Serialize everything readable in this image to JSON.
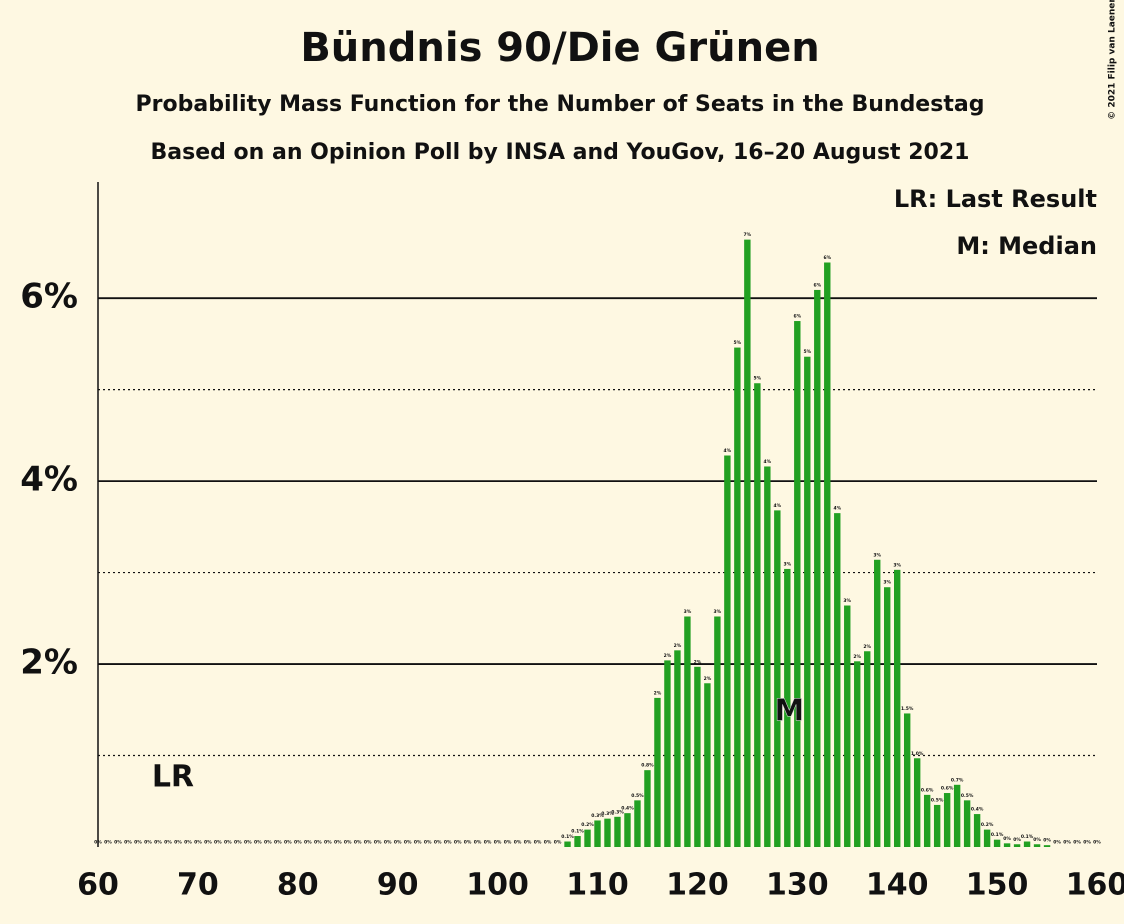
{
  "chart_data": {
    "type": "bar",
    "title": "Bündnis 90/Die Grünen",
    "subtitle": "Probability Mass Function for the Number of Seats in the Bundestag",
    "subtitle2": "Based on an Opinion Poll by INSA and YouGov, 16–20 August 2021",
    "copyright": "© 2021 Filip van Laenen",
    "legend": [
      "LR: Last Result",
      "M: Median"
    ],
    "last_result": {
      "label": "LR",
      "seat": 67
    },
    "median": {
      "label": "M",
      "seat": 129
    },
    "color": "#22a022",
    "x": [
      60,
      61,
      62,
      63,
      64,
      65,
      66,
      67,
      68,
      69,
      70,
      71,
      72,
      73,
      74,
      75,
      76,
      77,
      78,
      79,
      80,
      81,
      82,
      83,
      84,
      85,
      86,
      87,
      88,
      89,
      90,
      91,
      92,
      93,
      94,
      95,
      96,
      97,
      98,
      99,
      100,
      101,
      102,
      103,
      104,
      105,
      106,
      107,
      108,
      109,
      110,
      111,
      112,
      113,
      114,
      115,
      116,
      117,
      118,
      119,
      120,
      121,
      122,
      123,
      124,
      125,
      126,
      127,
      128,
      129,
      130,
      131,
      132,
      133,
      134,
      135,
      136,
      137,
      138,
      139,
      140,
      141,
      142,
      143,
      144,
      145,
      146,
      147,
      148,
      149,
      150,
      151,
      152,
      153,
      154,
      155,
      156,
      157,
      158,
      159,
      160
    ],
    "values": [
      0,
      0,
      0,
      0,
      0,
      0,
      0,
      0,
      0,
      0,
      0,
      0,
      0,
      0,
      0,
      0,
      0,
      0,
      0,
      0,
      0,
      0,
      0,
      0,
      0,
      0,
      0,
      0,
      0,
      0,
      0,
      0,
      0,
      0,
      0,
      0,
      0,
      0,
      0,
      0,
      0,
      0,
      0,
      0,
      0,
      0,
      0,
      0.06,
      0.12,
      0.19,
      0.29,
      0.31,
      0.33,
      0.37,
      0.51,
      0.84,
      1.63,
      2.04,
      2.15,
      2.52,
      1.97,
      1.79,
      2.52,
      4.28,
      5.46,
      6.64,
      5.07,
      4.16,
      3.68,
      3.04,
      5.75,
      5.36,
      6.09,
      6.39,
      3.65,
      2.64,
      2.03,
      2.14,
      3.14,
      2.84,
      3.03,
      1.46,
      0.97,
      0.57,
      0.46,
      0.59,
      0.68,
      0.51,
      0.36,
      0.19,
      0.08,
      0.04,
      0.03,
      0.06,
      0.03,
      0.02,
      0,
      0,
      0,
      0,
      0
    ],
    "value_labels": [
      "0%",
      "0%",
      "0%",
      "0%",
      "0%",
      "0%",
      "0%",
      "0%",
      "0%",
      "0%",
      "0%",
      "0%",
      "0%",
      "0%",
      "0%",
      "0%",
      "0%",
      "0%",
      "0%",
      "0%",
      "0%",
      "0%",
      "0%",
      "0%",
      "0%",
      "0%",
      "0%",
      "0%",
      "0%",
      "0%",
      "0%",
      "0%",
      "0%",
      "0%",
      "0%",
      "0%",
      "0%",
      "0%",
      "0%",
      "0%",
      "0%",
      "0%",
      "0%",
      "0%",
      "0%",
      "0%",
      "0%",
      "0.1%",
      "0.1%",
      "0.2%",
      "0.3%",
      "0.3%",
      "0.3%",
      "0.4%",
      "0.5%",
      "0.8%",
      "2%",
      "2%",
      "2%",
      "3%",
      "2%",
      "2%",
      "3%",
      "4%",
      "5%",
      "7%",
      "5%",
      "4%",
      "4%",
      "3%",
      "6%",
      "5%",
      "6%",
      "6%",
      "4%",
      "3%",
      "2%",
      "2%",
      "3%",
      "3%",
      "3%",
      "1.5%",
      "1.0%",
      "0.6%",
      "0.5%",
      "0.6%",
      "0.7%",
      "0.5%",
      "0.4%",
      "0.2%",
      "0.1%",
      "0%",
      "0%",
      "0.1%",
      "0%",
      "0%",
      "0%",
      "0%",
      "0%",
      "0%",
      "0%"
    ],
    "xlim": [
      60,
      160
    ],
    "xticks": [
      60,
      70,
      80,
      90,
      100,
      110,
      120,
      130,
      140,
      150,
      160
    ],
    "ylim": [
      0,
      7.27
    ],
    "yticks": [
      {
        "value": 2,
        "label": "2%"
      },
      {
        "value": 4,
        "label": "4%"
      },
      {
        "value": 6,
        "label": "6%"
      }
    ],
    "minor_yticks": [
      1,
      3,
      5
    ],
    "grid": true
  }
}
